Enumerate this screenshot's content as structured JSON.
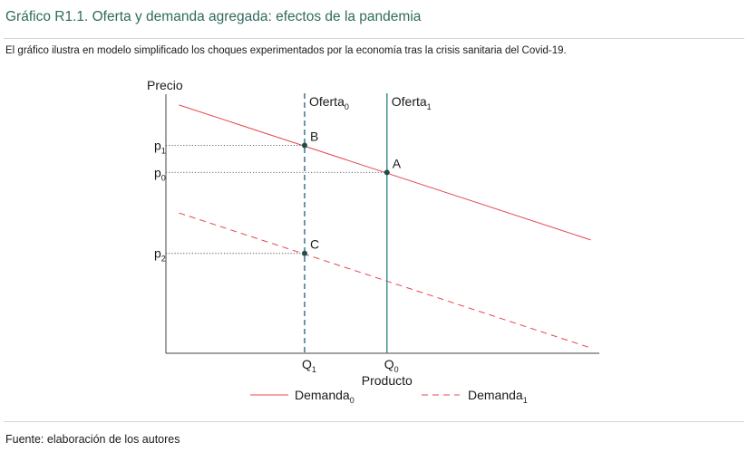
{
  "title": "Gráfico R1.1. Oferta y demanda agregada: efectos de la pandemia",
  "description": "El gráfico ilustra en modelo simplificado los choques experimentados por la economía tras la crisis sanitaria del Covid-19.",
  "source": "Fuente: elaboración de los autores",
  "colors": {
    "title": "#2f6b5e",
    "demand": "#e4484f",
    "supply0": "#2e6a86",
    "supply1": "#3a8a8d",
    "point": "#1e4f45",
    "axis": "#444444"
  },
  "chart_data": {
    "type": "line",
    "title": "Gráfico R1.1. Oferta y demanda agregada: efectos de la pandemia",
    "ylabel": "Precio",
    "xlabel": "Producto",
    "xlim": [
      0,
      100
    ],
    "ylim": [
      0,
      100
    ],
    "grid": false,
    "legend_position": "bottom",
    "series": [
      {
        "id": "demanda0",
        "name": "Demanda",
        "sub": "0",
        "style": "solid",
        "x": [
          3,
          98
        ],
        "y": [
          92,
          42
        ]
      },
      {
        "id": "demanda1",
        "name": "Demanda",
        "sub": "1",
        "style": "dashed",
        "x": [
          3,
          98
        ],
        "y": [
          52,
          2
        ]
      }
    ],
    "supply": [
      {
        "id": "oferta0",
        "name": "Oferta",
        "sub": "0",
        "style": "dashed",
        "x": 32
      },
      {
        "id": "oferta1",
        "name": "Oferta",
        "sub": "1",
        "style": "solid",
        "x": 51
      }
    ],
    "points": [
      {
        "label": "B",
        "x": 32,
        "y": 77
      },
      {
        "label": "A",
        "x": 51,
        "y": 67
      },
      {
        "label": "C",
        "x": 32,
        "y": 37
      }
    ],
    "y_ticks": [
      {
        "label": "p",
        "sub": "1",
        "y": 77
      },
      {
        "label": "p",
        "sub": "0",
        "y": 67
      },
      {
        "label": "p",
        "sub": "2",
        "y": 37
      }
    ],
    "x_ticks": [
      {
        "label": "Q",
        "sub": "1",
        "x": 32
      },
      {
        "label": "Q",
        "sub": "0",
        "x": 51
      }
    ]
  }
}
